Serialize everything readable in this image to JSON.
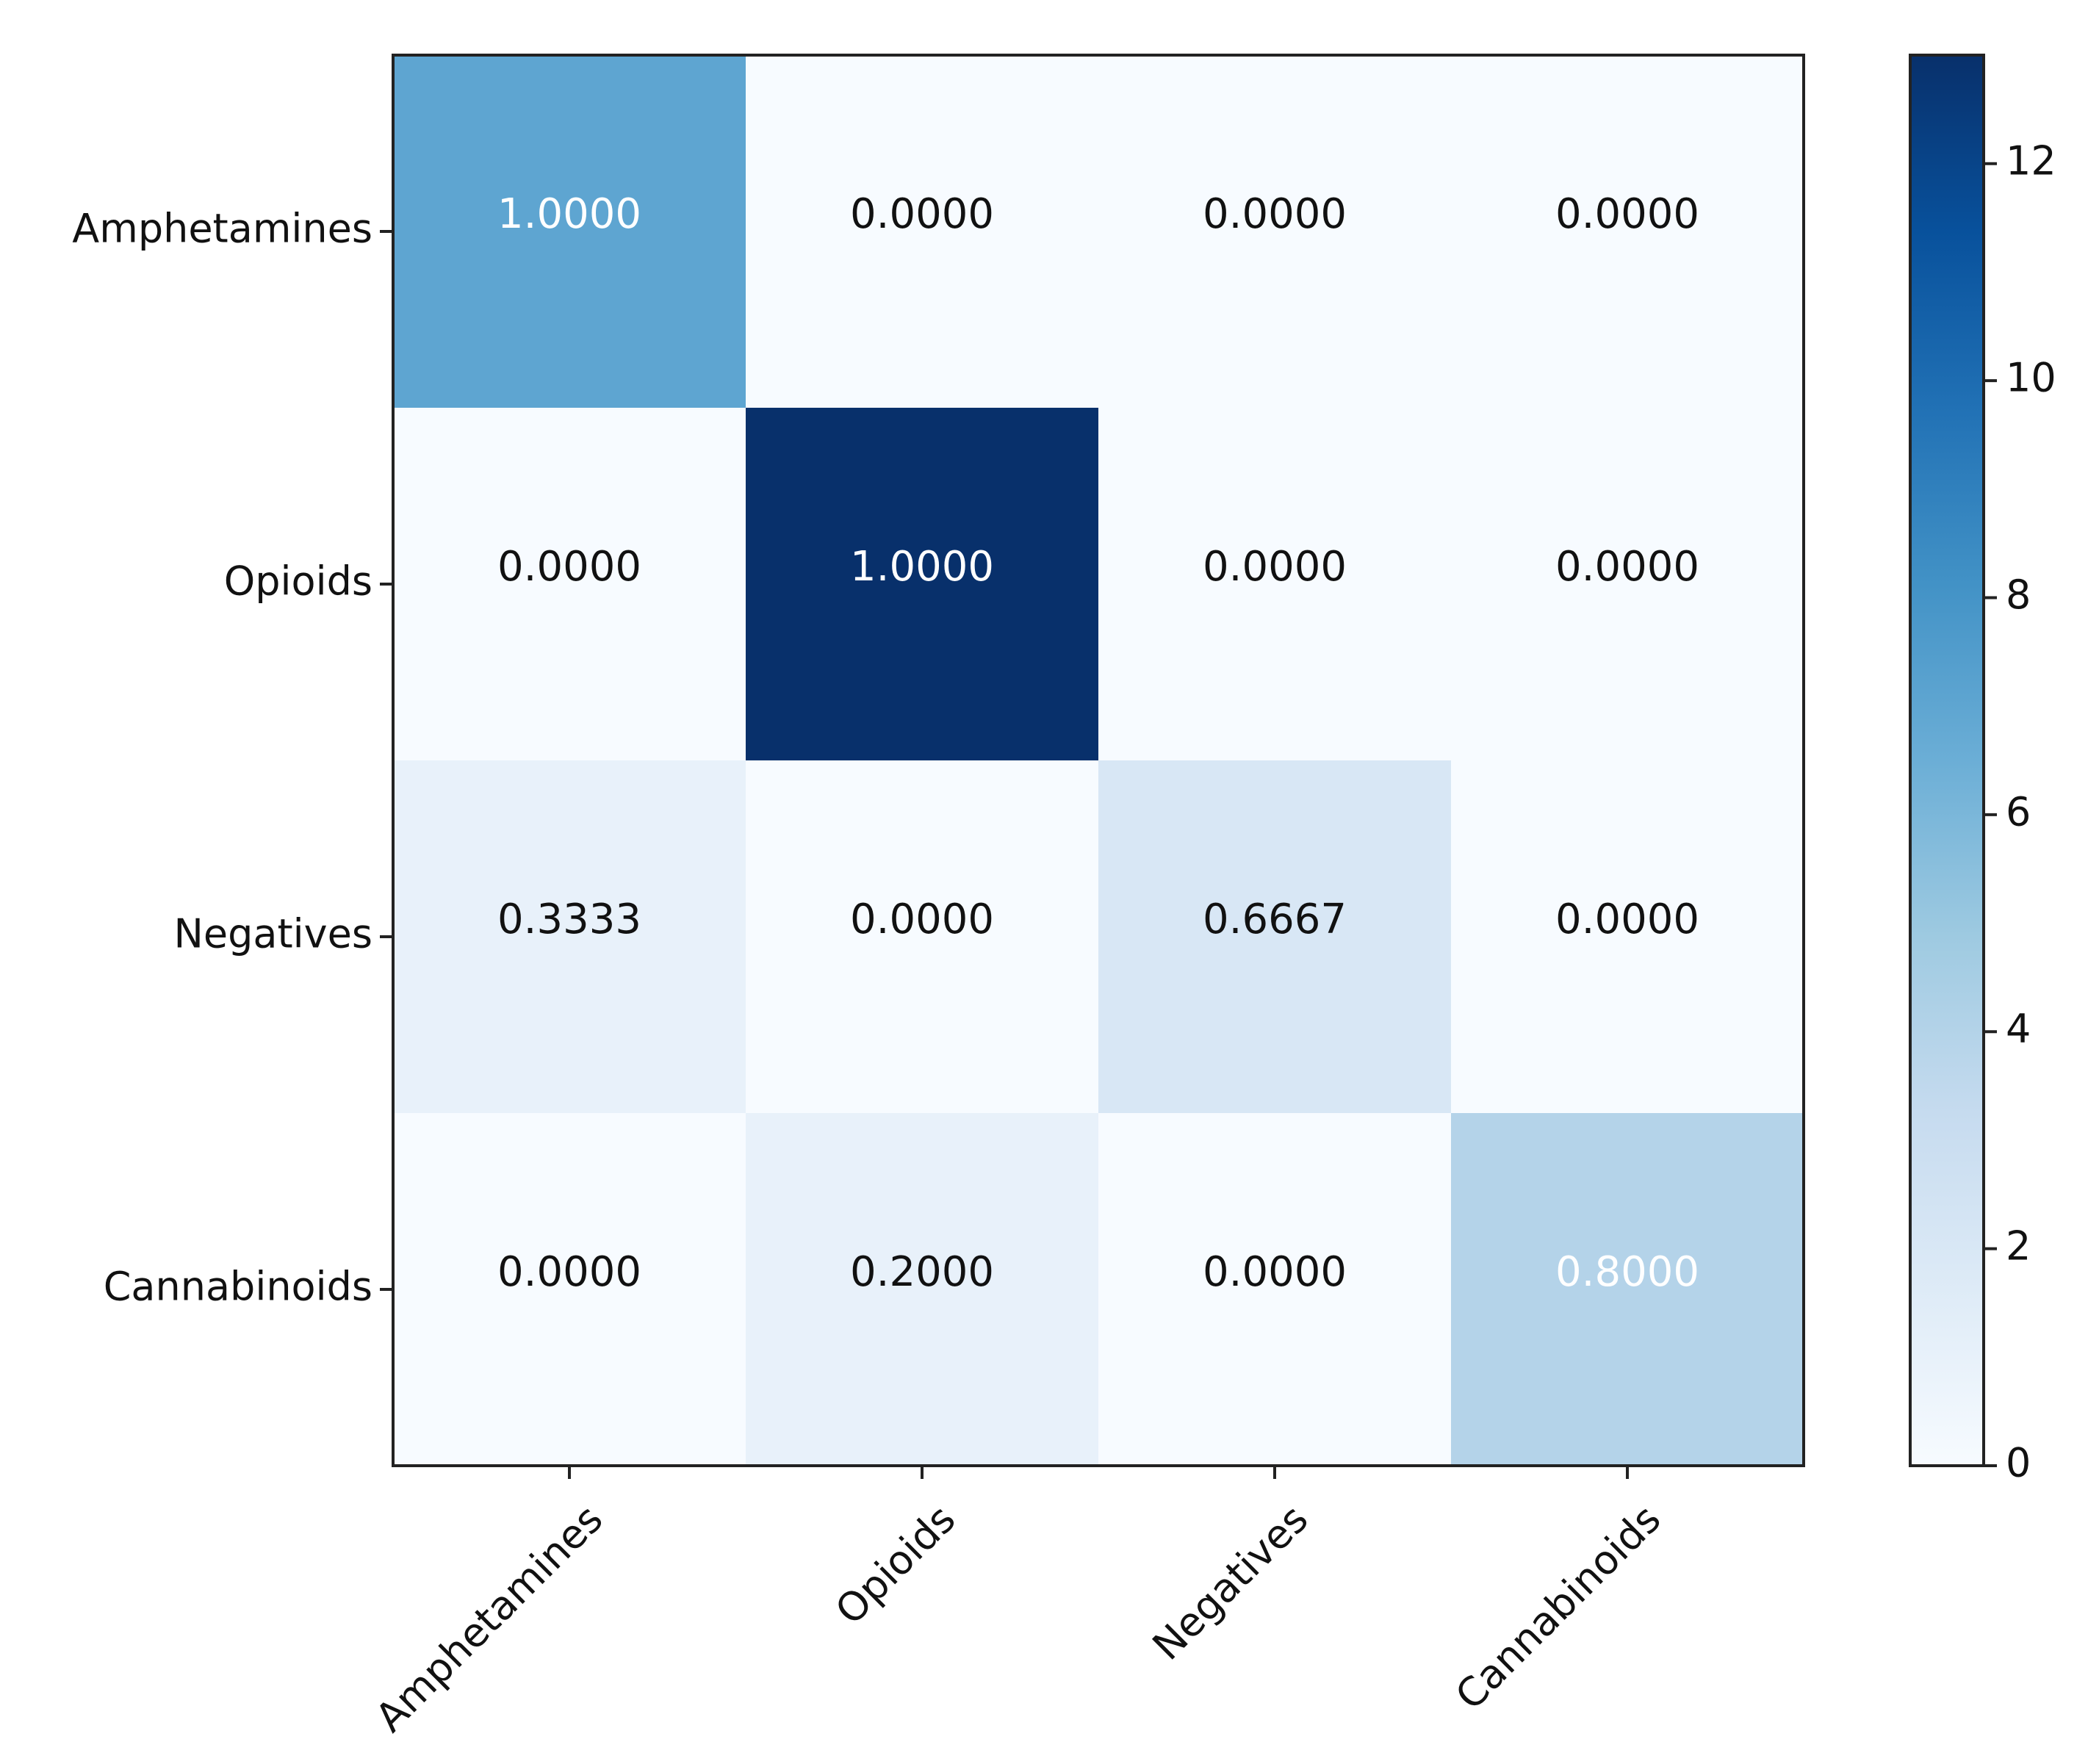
{
  "chart_data": {
    "type": "heatmap",
    "title": "",
    "xlabel": "",
    "ylabel": "",
    "row_labels": [
      "Amphetamines",
      "Opioids",
      "Negatives",
      "Cannabinoids"
    ],
    "col_labels": [
      "Amphetamines",
      "Opioids",
      "Negatives",
      "Cannabinoids"
    ],
    "cell_text": [
      [
        "1.0000",
        "0.0000",
        "0.0000",
        "0.0000"
      ],
      [
        "0.0000",
        "1.0000",
        "0.0000",
        "0.0000"
      ],
      [
        "0.3333",
        "0.0000",
        "0.6667",
        "0.0000"
      ],
      [
        "0.0000",
        "0.2000",
        "0.0000",
        "0.8000"
      ]
    ],
    "counts": [
      [
        7,
        0,
        0,
        0
      ],
      [
        0,
        13,
        0,
        0
      ],
      [
        1,
        0,
        2,
        0
      ],
      [
        0,
        1,
        0,
        4
      ]
    ],
    "colorbar": {
      "range": [
        0,
        13
      ],
      "ticks": [
        0,
        2,
        4,
        6,
        8,
        10,
        12
      ],
      "colormap": "Blues"
    },
    "colors": {
      "low": "#f7fbff",
      "high": "#08306b",
      "text_dark": "#111111",
      "text_light": "#ffffff"
    }
  }
}
